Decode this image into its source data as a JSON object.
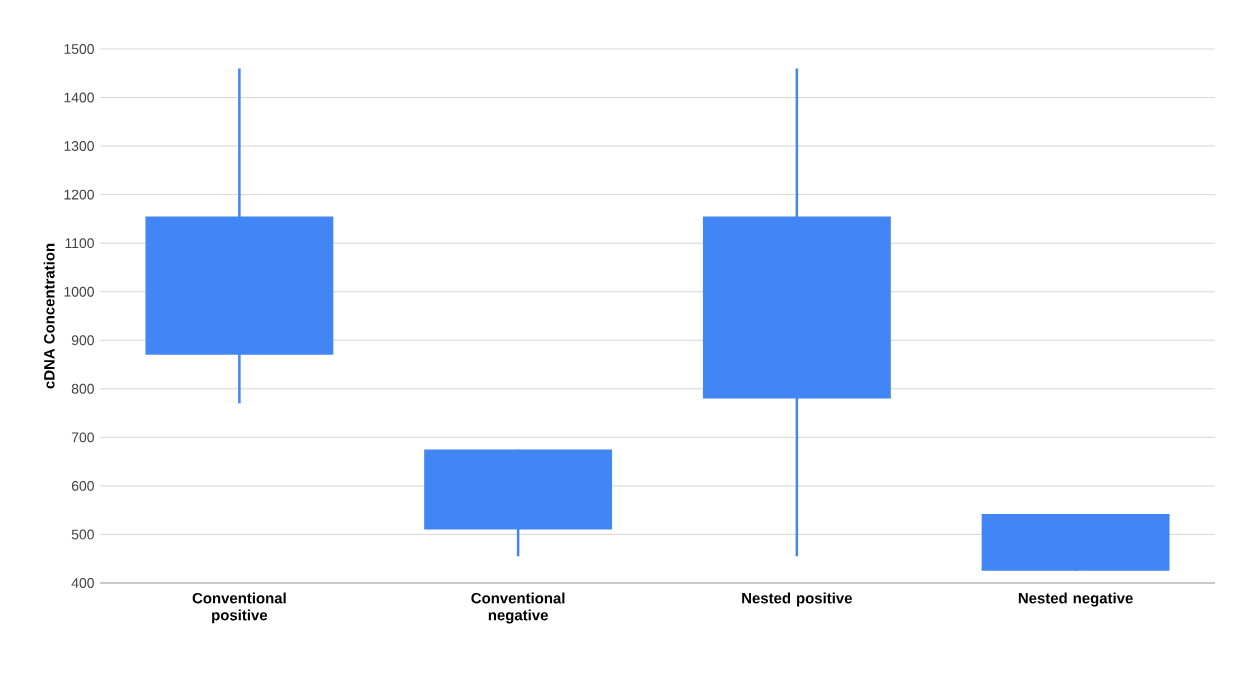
{
  "chart_data": {
    "type": "candlestick",
    "categories": [
      "Conventional positive",
      "Conventional negative",
      "Nested positive",
      "Nested negative"
    ],
    "ohlc": [
      [
        870,
        1460,
        770,
        1155
      ],
      [
        510,
        675,
        455,
        675
      ],
      [
        780,
        1460,
        455,
        1155
      ],
      [
        425,
        542,
        425,
        542
      ]
    ],
    "color": "#4285f4",
    "ylabel": "cDNA Concentration",
    "ylim": [
      400,
      1500
    ],
    "yticks": [
      400,
      500,
      600,
      700,
      800,
      900,
      1000,
      1100,
      1200,
      1300,
      1400,
      1500
    ],
    "grid": "y"
  }
}
